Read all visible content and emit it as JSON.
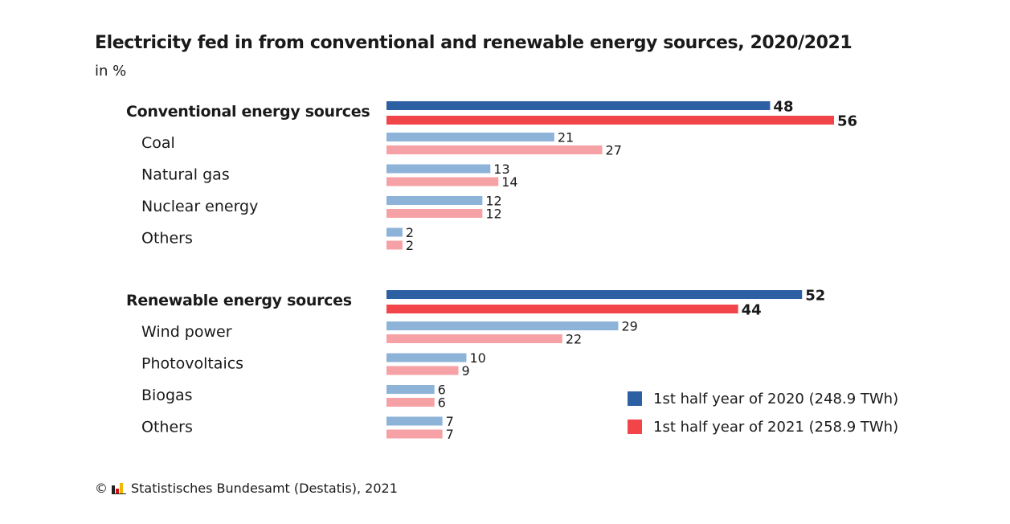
{
  "title": "Electricity fed in from conventional and renewable energy sources, 2020/2021",
  "subtitle": "in %",
  "colors": {
    "total_2020": "#2d5fa3",
    "total_2021": "#f2454a",
    "sub_2020": "#8eb3d9",
    "sub_2021": "#f6a1a5"
  },
  "legend": {
    "items": [
      {
        "label": "1st half year of 2020 (248.9 TWh)",
        "color": "#2d5fa3"
      },
      {
        "label": "1st half year of 2021 (258.9 TWh)",
        "color": "#f2454a"
      }
    ]
  },
  "footer": {
    "copyright_symbol": "©",
    "logo_icon": "destatis-logo-icon",
    "text": "Statistisches Bundesamt (Destatis), 2021"
  },
  "chart_data": {
    "type": "bar",
    "orientation": "horizontal",
    "title": "Electricity fed in from conventional and renewable energy sources, 2020/2021",
    "subtitle": "in %",
    "series": [
      {
        "name": "1st half year of 2020 (248.9 TWh)"
      },
      {
        "name": "1st half year of 2021 (258.9 TWh)"
      }
    ],
    "groups": [
      {
        "label": "Conventional energy sources",
        "values": [
          48,
          56
        ],
        "items": [
          {
            "label": "Coal",
            "values": [
              21,
              27
            ]
          },
          {
            "label": "Natural gas",
            "values": [
              13,
              14
            ]
          },
          {
            "label": "Nuclear energy",
            "values": [
              12,
              12
            ]
          },
          {
            "label": "Others",
            "values": [
              2,
              2
            ]
          }
        ]
      },
      {
        "label": "Renewable energy sources",
        "values": [
          52,
          44
        ],
        "items": [
          {
            "label": "Wind power",
            "values": [
              29,
              22
            ]
          },
          {
            "label": "Photovoltaics",
            "values": [
              10,
              9
            ]
          },
          {
            "label": "Biogas",
            "values": [
              6,
              6
            ]
          },
          {
            "label": "Others",
            "values": [
              7,
              7
            ]
          }
        ]
      }
    ],
    "xlim": [
      0,
      56
    ],
    "grid": false,
    "legend_position": "bottom-right"
  }
}
